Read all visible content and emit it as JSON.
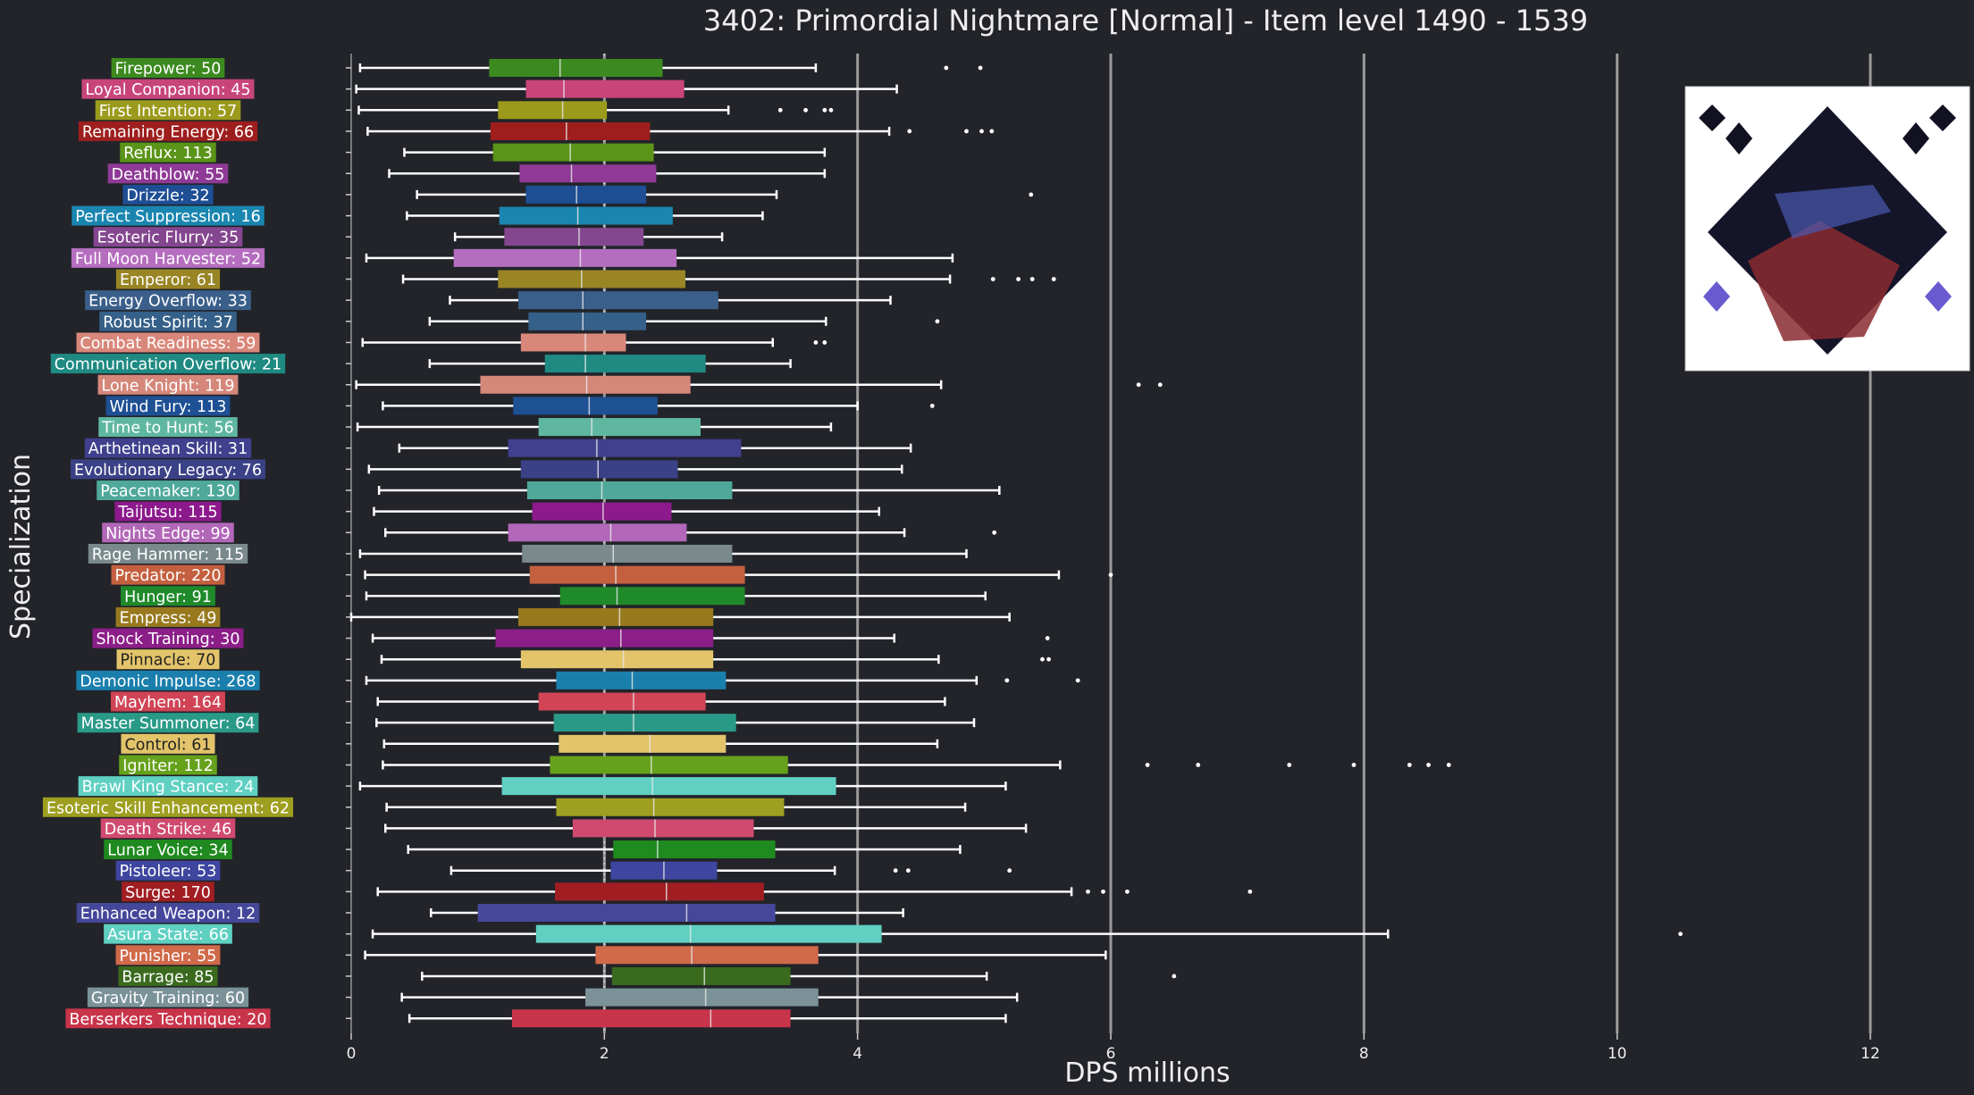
{
  "chart_data": {
    "type": "box",
    "title": "3402: Primordial Nightmare [Normal] - Item level 1490 - 1539",
    "xlabel": "DPS millions",
    "ylabel": "Specialization",
    "xlim": [
      0,
      12.6
    ],
    "xticks": [
      0,
      2,
      4,
      6,
      8,
      10,
      12
    ],
    "grid": "vertical lines at major ticks",
    "inset_image": "boss-portrait (top-right)",
    "series": [
      {
        "label": "Firepower: 50",
        "color": "#3c8a1f",
        "whisker_low": 0.07,
        "q1": 1.09,
        "median": 1.65,
        "q3": 2.46,
        "whisker_high": 3.67,
        "outliers": [
          4.7,
          4.97
        ]
      },
      {
        "label": "Loyal Companion: 45",
        "color": "#c8457a",
        "whisker_low": 0.04,
        "q1": 1.38,
        "median": 1.68,
        "q3": 2.63,
        "whisker_high": 4.31,
        "outliers": []
      },
      {
        "label": "First Intention: 57",
        "color": "#9c9a1c",
        "whisker_low": 0.06,
        "q1": 1.16,
        "median": 1.67,
        "q3": 2.02,
        "whisker_high": 2.98,
        "outliers": [
          3.39,
          3.59,
          3.74,
          3.79
        ]
      },
      {
        "label": "Remaining Energy: 66",
        "color": "#9e1e1e",
        "whisker_low": 0.13,
        "q1": 1.1,
        "median": 1.7,
        "q3": 2.36,
        "whisker_high": 4.25,
        "outliers": [
          4.41,
          4.86,
          4.98,
          5.06
        ]
      },
      {
        "label": "Reflux: 113",
        "color": "#5a9418",
        "whisker_low": 0.42,
        "q1": 1.12,
        "median": 1.73,
        "q3": 2.39,
        "whisker_high": 3.74,
        "outliers": []
      },
      {
        "label": "Deathblow: 55",
        "color": "#8f3a96",
        "whisker_low": 0.3,
        "q1": 1.33,
        "median": 1.74,
        "q3": 2.41,
        "whisker_high": 3.74,
        "outliers": []
      },
      {
        "label": "Drizzle: 32",
        "color": "#1e4e94",
        "whisker_low": 0.52,
        "q1": 1.38,
        "median": 1.78,
        "q3": 2.33,
        "whisker_high": 3.36,
        "outliers": [
          5.37
        ]
      },
      {
        "label": "Perfect Suppression: 16",
        "color": "#1a86b0",
        "whisker_low": 0.44,
        "q1": 1.17,
        "median": 1.79,
        "q3": 2.54,
        "whisker_high": 3.25,
        "outliers": []
      },
      {
        "label": "Esoteric Flurry: 35",
        "color": "#84478f",
        "whisker_low": 0.82,
        "q1": 1.21,
        "median": 1.8,
        "q3": 2.31,
        "whisker_high": 2.93,
        "outliers": []
      },
      {
        "label": "Full Moon Harvester: 52",
        "color": "#b56ebf",
        "whisker_low": 0.12,
        "q1": 0.81,
        "median": 1.81,
        "q3": 2.57,
        "whisker_high": 4.75,
        "outliers": []
      },
      {
        "label": "Emperor: 61",
        "color": "#998524",
        "whisker_low": 0.41,
        "q1": 1.16,
        "median": 1.82,
        "q3": 2.64,
        "whisker_high": 4.73,
        "outliers": [
          5.07,
          5.27,
          5.38,
          5.55
        ]
      },
      {
        "label": "Energy Overflow: 33",
        "color": "#3a5f8a",
        "whisker_low": 0.78,
        "q1": 1.32,
        "median": 1.83,
        "q3": 2.9,
        "whisker_high": 4.26,
        "outliers": []
      },
      {
        "label": "Robust Spirit: 37",
        "color": "#356089",
        "whisker_low": 0.62,
        "q1": 1.4,
        "median": 1.83,
        "q3": 2.33,
        "whisker_high": 3.75,
        "outliers": [
          4.63
        ]
      },
      {
        "label": "Combat Readiness: 59",
        "color": "#d9877a",
        "whisker_low": 0.09,
        "q1": 1.34,
        "median": 1.85,
        "q3": 2.17,
        "whisker_high": 3.33,
        "outliers": [
          3.67,
          3.74
        ]
      },
      {
        "label": "Communication Overflow: 21",
        "color": "#1f8a82",
        "whisker_low": 0.62,
        "q1": 1.53,
        "median": 1.85,
        "q3": 2.8,
        "whisker_high": 3.47,
        "outliers": []
      },
      {
        "label": "Lone Knight: 119",
        "color": "#d5877a",
        "whisker_low": 0.04,
        "q1": 1.02,
        "median": 1.86,
        "q3": 2.68,
        "whisker_high": 4.66,
        "outliers": [
          6.22,
          6.39
        ]
      },
      {
        "label": "Wind Fury: 113",
        "color": "#1e5094",
        "whisker_low": 0.25,
        "q1": 1.28,
        "median": 1.88,
        "q3": 2.42,
        "whisker_high": 4.0,
        "outliers": [
          4.59
        ]
      },
      {
        "label": "Time to Hunt: 56",
        "color": "#5fb7a0",
        "whisker_low": 0.05,
        "q1": 1.48,
        "median": 1.9,
        "q3": 2.76,
        "whisker_high": 3.79,
        "outliers": []
      },
      {
        "label": "Arthetinean Skill: 31",
        "color": "#40408e",
        "whisker_low": 0.38,
        "q1": 1.24,
        "median": 1.94,
        "q3": 3.08,
        "whisker_high": 4.42,
        "outliers": []
      },
      {
        "label": "Evolutionary Legacy: 76",
        "color": "#3b4187",
        "whisker_low": 0.14,
        "q1": 1.34,
        "median": 1.95,
        "q3": 2.58,
        "whisker_high": 4.35,
        "outliers": []
      },
      {
        "label": "Peacemaker: 130",
        "color": "#4fa89a",
        "whisker_low": 0.22,
        "q1": 1.39,
        "median": 1.98,
        "q3": 3.01,
        "whisker_high": 5.12,
        "outliers": []
      },
      {
        "label": "Taijutsu: 115",
        "color": "#8c1a8c",
        "whisker_low": 0.18,
        "q1": 1.43,
        "median": 1.99,
        "q3": 2.53,
        "whisker_high": 4.17,
        "outliers": []
      },
      {
        "label": "Nights Edge: 99",
        "color": "#b267b8",
        "whisker_low": 0.27,
        "q1": 1.24,
        "median": 2.05,
        "q3": 2.65,
        "whisker_high": 4.37,
        "outliers": [
          5.08
        ]
      },
      {
        "label": "Rage Hammer: 115",
        "color": "#7a8a8c",
        "whisker_low": 0.07,
        "q1": 1.35,
        "median": 2.07,
        "q3": 3.01,
        "whisker_high": 4.86,
        "outliers": []
      },
      {
        "label": "Predator: 220",
        "color": "#c4603f",
        "whisker_low": 0.11,
        "q1": 1.41,
        "median": 2.09,
        "q3": 3.11,
        "whisker_high": 5.59,
        "outliers": [
          6.0
        ]
      },
      {
        "label": "Hunger: 91",
        "color": "#1f8a2a",
        "whisker_low": 0.12,
        "q1": 1.65,
        "median": 2.1,
        "q3": 3.11,
        "whisker_high": 5.01,
        "outliers": []
      },
      {
        "label": "Empress: 49",
        "color": "#98791e",
        "whisker_low": 0.0,
        "q1": 1.32,
        "median": 2.12,
        "q3": 2.86,
        "whisker_high": 5.2,
        "outliers": []
      },
      {
        "label": "Shock Training: 30",
        "color": "#8c1e88",
        "whisker_low": 0.17,
        "q1": 1.14,
        "median": 2.13,
        "q3": 2.86,
        "whisker_high": 4.29,
        "outliers": [
          5.5
        ]
      },
      {
        "label": "Pinnacle: 70",
        "color": "#e3c46a",
        "whisker_low": 0.24,
        "q1": 1.34,
        "median": 2.15,
        "q3": 2.86,
        "whisker_high": 4.64,
        "outliers": [
          5.46,
          5.51
        ]
      },
      {
        "label": "Demonic Impulse: 268",
        "color": "#1a7fad",
        "whisker_low": 0.12,
        "q1": 1.62,
        "median": 2.22,
        "q3": 2.96,
        "whisker_high": 4.94,
        "outliers": [
          5.18,
          5.74
        ]
      },
      {
        "label": "Mayhem: 164",
        "color": "#d04456",
        "whisker_low": 0.21,
        "q1": 1.48,
        "median": 2.23,
        "q3": 2.8,
        "whisker_high": 4.69,
        "outliers": []
      },
      {
        "label": "Master Summoner: 64",
        "color": "#2a9a88",
        "whisker_low": 0.2,
        "q1": 1.6,
        "median": 2.23,
        "q3": 3.04,
        "whisker_high": 4.92,
        "outliers": []
      },
      {
        "label": "Control: 61",
        "color": "#e3c46a",
        "whisker_low": 0.26,
        "q1": 1.64,
        "median": 2.36,
        "q3": 2.96,
        "whisker_high": 4.63,
        "outliers": []
      },
      {
        "label": "Igniter: 112",
        "color": "#66a11c",
        "whisker_low": 0.25,
        "q1": 1.57,
        "median": 2.37,
        "q3": 3.45,
        "whisker_high": 5.6,
        "outliers": [
          6.29,
          6.69,
          7.41,
          7.92,
          8.36,
          8.51,
          8.67
        ]
      },
      {
        "label": "Brawl King Stance: 24",
        "color": "#5fd0c2",
        "whisker_low": 0.07,
        "q1": 1.19,
        "median": 2.38,
        "q3": 3.83,
        "whisker_high": 5.17,
        "outliers": []
      },
      {
        "label": "Esoteric Skill Enhancement: 62",
        "color": "#9e9e20",
        "whisker_low": 0.28,
        "q1": 1.62,
        "median": 2.39,
        "q3": 3.42,
        "whisker_high": 4.85,
        "outliers": []
      },
      {
        "label": "Death Strike: 46",
        "color": "#d04a70",
        "whisker_low": 0.27,
        "q1": 1.75,
        "median": 2.4,
        "q3": 3.18,
        "whisker_high": 5.33,
        "outliers": []
      },
      {
        "label": "Lunar Voice: 34",
        "color": "#1f8a1f",
        "whisker_low": 0.45,
        "q1": 2.07,
        "median": 2.42,
        "q3": 3.35,
        "whisker_high": 4.81,
        "outliers": []
      },
      {
        "label": "Pistoleer: 53",
        "color": "#3e46a0",
        "whisker_low": 0.79,
        "q1": 2.05,
        "median": 2.47,
        "q3": 2.89,
        "whisker_high": 3.82,
        "outliers": [
          4.3,
          4.4,
          5.2
        ]
      },
      {
        "label": "Surge: 170",
        "color": "#a01e22",
        "whisker_low": 0.21,
        "q1": 1.61,
        "median": 2.49,
        "q3": 3.26,
        "whisker_high": 5.69,
        "outliers": [
          5.82,
          5.94,
          6.13,
          7.1
        ]
      },
      {
        "label": "Enhanced Weapon: 12",
        "color": "#45479a",
        "whisker_low": 0.63,
        "q1": 1.0,
        "median": 2.65,
        "q3": 3.35,
        "whisker_high": 4.36,
        "outliers": []
      },
      {
        "label": "Asura State: 66",
        "color": "#5fd0c2",
        "whisker_low": 0.17,
        "q1": 1.46,
        "median": 2.68,
        "q3": 4.19,
        "whisker_high": 8.19,
        "outliers": [
          10.5
        ]
      },
      {
        "label": "Punisher: 55",
        "color": "#d06a4a",
        "whisker_low": 0.11,
        "q1": 1.93,
        "median": 2.69,
        "q3": 3.69,
        "whisker_high": 5.96,
        "outliers": []
      },
      {
        "label": "Barrage: 85",
        "color": "#3a6a1e",
        "whisker_low": 0.56,
        "q1": 2.06,
        "median": 2.79,
        "q3": 3.47,
        "whisker_high": 5.02,
        "outliers": [
          6.5
        ]
      },
      {
        "label": "Gravity Training: 60",
        "color": "#7a9298",
        "whisker_low": 0.4,
        "q1": 1.85,
        "median": 2.8,
        "q3": 3.69,
        "whisker_high": 5.26,
        "outliers": []
      },
      {
        "label": "Berserkers Technique: 20",
        "color": "#c8344a",
        "whisker_low": 0.46,
        "q1": 1.27,
        "median": 2.84,
        "q3": 3.47,
        "whisker_high": 5.17,
        "outliers": []
      }
    ]
  }
}
